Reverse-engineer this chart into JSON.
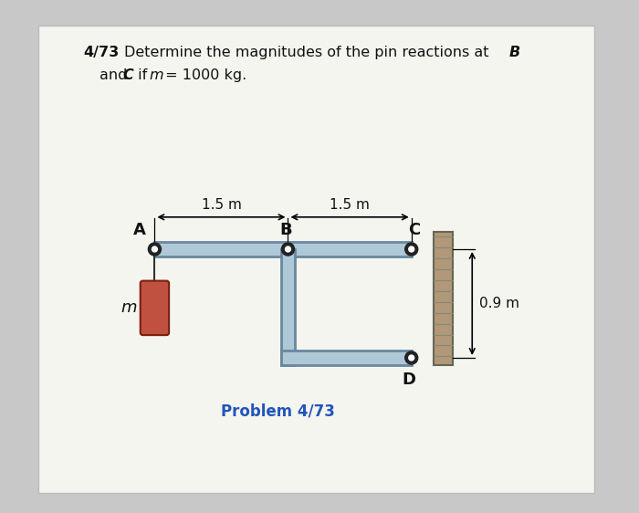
{
  "title_bold": "4/73",
  "title_text": " Determine the magnitudes of the pin reactions at ",
  "title_italic_B": "B",
  "title_line2a": "and ",
  "title_line2_C": "C",
  "title_line2b": " if ",
  "title_line2_m": "m",
  "title_line2c": " = 1000 kg.",
  "problem_label": "Problem 4/73",
  "dim1_label": "1.5 m",
  "dim2_label": "1.5 m",
  "dim3_label": "0.9 m",
  "point_A": "A",
  "point_B": "B",
  "point_C": "C",
  "point_D": "D",
  "mass_label": "m",
  "bg_color": "#c8c8c8",
  "paper_color": "#f5f5f0",
  "beam_color": "#aec8d8",
  "beam_edge_color": "#6888a0",
  "wall_color": "#b09878",
  "mass_color": "#c05040",
  "pin_color": "#222222",
  "text_color": "#111111",
  "blue_text_color": "#2255bb"
}
